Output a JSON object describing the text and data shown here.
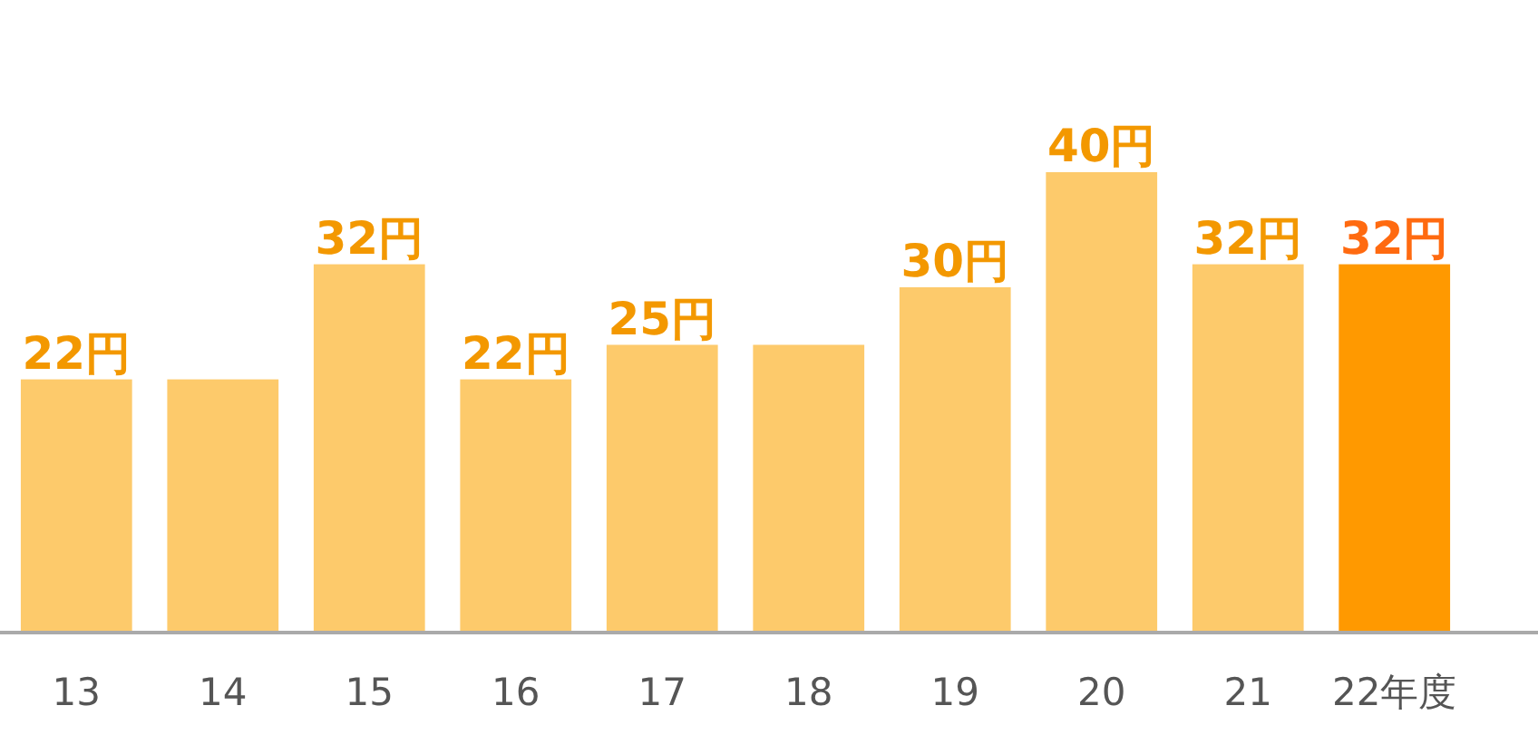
{
  "chart_data": {
    "type": "bar",
    "categories": [
      "13",
      "14",
      "15",
      "16",
      "17",
      "18",
      "19",
      "20",
      "21",
      "22年度"
    ],
    "values": [
      22,
      22,
      32,
      22,
      25,
      25,
      30,
      40,
      32,
      32
    ],
    "colors": [
      "#fdca6b",
      "#fdca6b",
      "#fdca6b",
      "#fdca6b",
      "#fdca6b",
      "#fdca6b",
      "#fdca6b",
      "#fdca6b",
      "#fdca6b",
      "#ff9900"
    ],
    "value_labels": [
      "22円",
      null,
      "32円",
      "22円",
      "25円",
      null,
      "30円",
      "40円",
      "32円",
      "32円"
    ],
    "data_labels": false
  }
}
